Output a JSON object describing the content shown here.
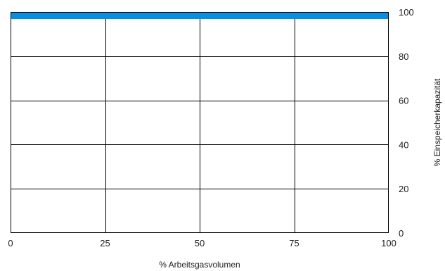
{
  "chart_data": {
    "type": "bar",
    "orientation": "horizontal",
    "xlabel": "% Arbeitsgasvolumen",
    "ylabel": "% Einspeicherkapazität",
    "xlim": [
      0,
      100
    ],
    "ylim": [
      0,
      100
    ],
    "x_ticks": [
      "0",
      "25",
      "50",
      "75",
      "100"
    ],
    "y_ticks": [
      "0",
      "20",
      "40",
      "60",
      "80",
      "100"
    ],
    "y_axis_side": "right",
    "grid": true,
    "series": [
      {
        "y_from": 96.8,
        "y_to": 100,
        "x_from": 0,
        "x_to": 100,
        "color": "#0a8fde"
      }
    ]
  }
}
